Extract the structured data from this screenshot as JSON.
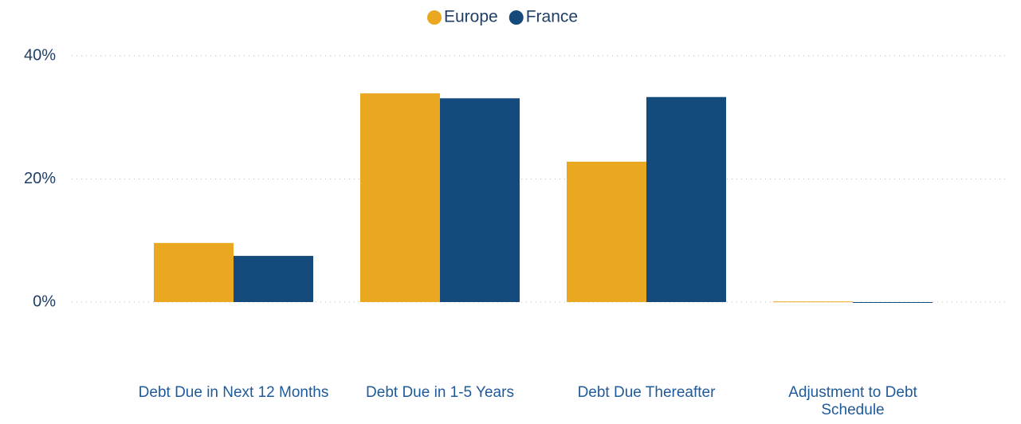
{
  "chart_data": {
    "type": "bar",
    "categories": [
      "Debt Due in Next 12 Months",
      "Debt Due in 1-5 Years",
      "Debt Due Thereafter",
      "Adjustment to Debt Schedule"
    ],
    "series": [
      {
        "name": "Europe",
        "color": "#e9a820",
        "values": [
          9.6,
          33.9,
          22.8,
          0.1
        ]
      },
      {
        "name": "France",
        "color": "#154a7c",
        "values": [
          7.5,
          33.1,
          33.3,
          0
        ]
      }
    ],
    "ylim": [
      0,
      40
    ],
    "yticks": [
      {
        "value": 0,
        "label": "0%"
      },
      {
        "value": 20,
        "label": "20%"
      },
      {
        "value": 40,
        "label": "40%"
      }
    ],
    "grid": true,
    "legend": "top"
  }
}
